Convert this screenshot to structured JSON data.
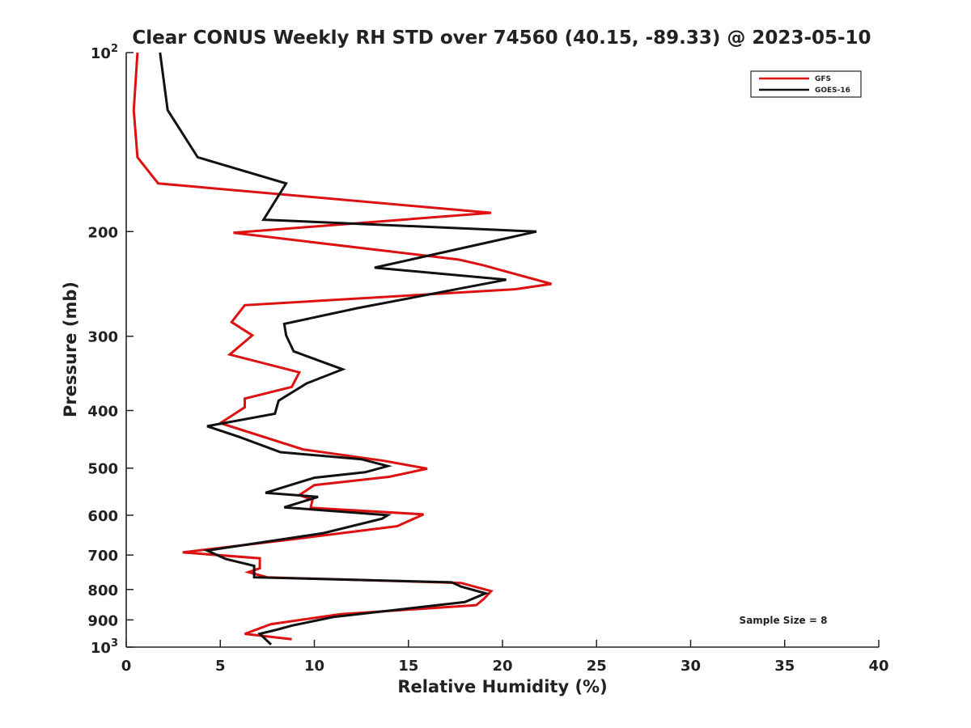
{
  "chart_data": {
    "type": "line",
    "title": "Clear CONUS Weekly RH STD over 74560 (40.15, -89.33) @ 2023-05-10",
    "xlabel": "Relative Humidity (%)",
    "ylabel": "Pressure (mb)",
    "xlim": [
      0,
      40
    ],
    "ylim": [
      100,
      1000
    ],
    "y_scale": "log",
    "y_reversed": true,
    "grid": false,
    "legend_position": "top-right",
    "x_ticks": [
      0,
      5,
      10,
      15,
      20,
      25,
      30,
      35,
      40
    ],
    "y_ticks": [
      {
        "value": 100,
        "label": "10",
        "sup": "2"
      },
      {
        "value": 200,
        "label": "200",
        "sup": ""
      },
      {
        "value": 300,
        "label": "300",
        "sup": ""
      },
      {
        "value": 400,
        "label": "400",
        "sup": ""
      },
      {
        "value": 500,
        "label": "500",
        "sup": ""
      },
      {
        "value": 600,
        "label": "600",
        "sup": ""
      },
      {
        "value": 700,
        "label": "700",
        "sup": ""
      },
      {
        "value": 800,
        "label": "800",
        "sup": ""
      },
      {
        "value": 900,
        "label": "900",
        "sup": ""
      },
      {
        "value": 1000,
        "label": "10",
        "sup": "3"
      }
    ],
    "annotation": "Sample Size = 8",
    "series": [
      {
        "name": "GFS",
        "color": "#dd1111",
        "points": [
          [
            0.6,
            100
          ],
          [
            0.4,
            125
          ],
          [
            0.6,
            150
          ],
          [
            1.7,
            166
          ],
          [
            19.4,
            186
          ],
          [
            5.7,
            201
          ],
          [
            17.7,
            223
          ],
          [
            19.0,
            228
          ],
          [
            22.6,
            245
          ],
          [
            20.7,
            250
          ],
          [
            6.3,
            266
          ],
          [
            5.6,
            284
          ],
          [
            6.7,
            299
          ],
          [
            5.5,
            322
          ],
          [
            9.2,
            345
          ],
          [
            8.8,
            365
          ],
          [
            6.3,
            382
          ],
          [
            6.3,
            395
          ],
          [
            5.0,
            420
          ],
          [
            9.4,
            465
          ],
          [
            13.7,
            486
          ],
          [
            16.0,
            501
          ],
          [
            14.0,
            517
          ],
          [
            10.0,
            534
          ],
          [
            9.2,
            555
          ],
          [
            9.9,
            565
          ],
          [
            9.8,
            583
          ],
          [
            15.8,
            598
          ],
          [
            14.4,
            626
          ],
          [
            8.6,
            660
          ],
          [
            3.0,
            693
          ],
          [
            7.1,
            709
          ],
          [
            7.1,
            737
          ],
          [
            6.5,
            748
          ],
          [
            7.5,
            763
          ],
          [
            17.8,
            780
          ],
          [
            19.4,
            805
          ],
          [
            19.0,
            830
          ],
          [
            18.6,
            850
          ],
          [
            11.4,
            880
          ],
          [
            7.7,
            915
          ],
          [
            6.3,
            950
          ],
          [
            8.8,
            970
          ]
        ]
      },
      {
        "name": "GOES-16",
        "color": "#111111",
        "points": [
          [
            1.8,
            100
          ],
          [
            2.2,
            125
          ],
          [
            3.8,
            150
          ],
          [
            8.5,
            166
          ],
          [
            7.3,
            191
          ],
          [
            21.8,
            200
          ],
          [
            13.2,
            230
          ],
          [
            20.2,
            241
          ],
          [
            12.3,
            269
          ],
          [
            8.4,
            286
          ],
          [
            8.5,
            299
          ],
          [
            8.9,
            318
          ],
          [
            11.5,
            341
          ],
          [
            9.6,
            360
          ],
          [
            8.1,
            385
          ],
          [
            7.9,
            405
          ],
          [
            4.3,
            425
          ],
          [
            6.0,
            443
          ],
          [
            8.2,
            470
          ],
          [
            12.5,
            483
          ],
          [
            13.9,
            496
          ],
          [
            12.7,
            508
          ],
          [
            10.0,
            519
          ],
          [
            7.4,
            550
          ],
          [
            10.2,
            559
          ],
          [
            8.4,
            582
          ],
          [
            13.9,
            600
          ],
          [
            13.6,
            608
          ],
          [
            10.5,
            643
          ],
          [
            4.3,
            688
          ],
          [
            5.3,
            711
          ],
          [
            6.8,
            730
          ],
          [
            6.8,
            763
          ],
          [
            17.3,
            778
          ],
          [
            17.8,
            791
          ],
          [
            19.1,
            812
          ],
          [
            18.0,
            840
          ],
          [
            11.0,
            890
          ],
          [
            8.8,
            920
          ],
          [
            8.0,
            935
          ],
          [
            7.1,
            950
          ],
          [
            7.7,
            990
          ]
        ]
      }
    ]
  }
}
